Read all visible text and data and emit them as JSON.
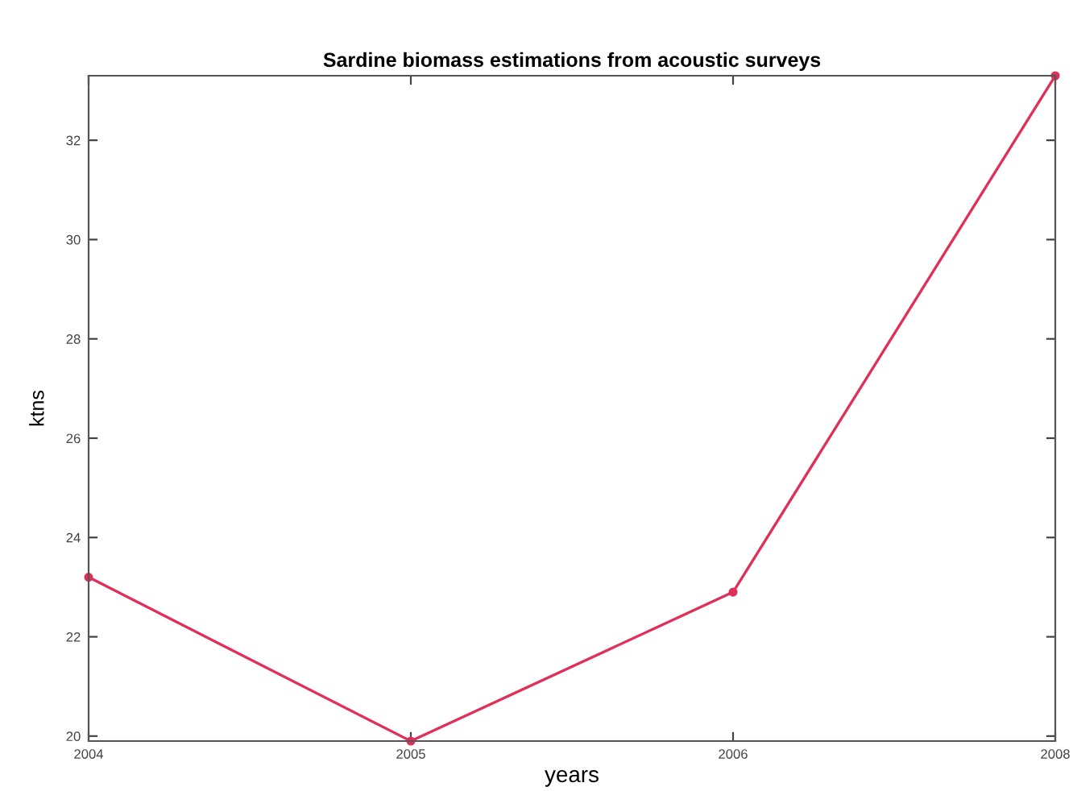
{
  "chart_data": {
    "type": "line",
    "title": "Sardine biomass estimations from acoustic surveys",
    "xlabel": "years",
    "ylabel": "ktns",
    "categories": [
      "2004",
      "2005",
      "2006",
      "2008"
    ],
    "series": [
      {
        "color": "#e0305a",
        "values": [
          23.2,
          19.9,
          22.9,
          33.3
        ]
      }
    ],
    "ylim": [
      19.9,
      33.3
    ],
    "yticks": [
      20,
      22,
      24,
      26,
      28,
      30,
      32
    ],
    "marker": "circle",
    "grid": false,
    "legend": false
  }
}
